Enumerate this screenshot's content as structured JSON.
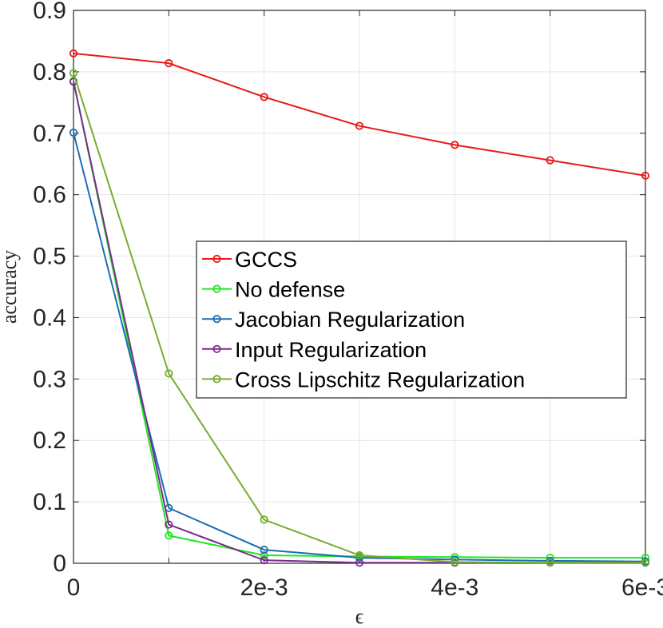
{
  "chart_data": {
    "type": "line",
    "title": "",
    "xlabel": "ϵ",
    "ylabel": "accuracy",
    "xlim": [
      0,
      0.006
    ],
    "ylim": [
      0,
      0.9
    ],
    "grid": true,
    "legend_position": "center-right",
    "x": [
      0,
      0.001,
      0.002,
      0.003,
      0.004,
      0.005,
      0.006
    ],
    "xticks": [
      {
        "value": 0,
        "label": "0"
      },
      {
        "value": 0.002,
        "label": "2e-3"
      },
      {
        "value": 0.004,
        "label": "4e-3"
      },
      {
        "value": 0.006,
        "label": "6e-3"
      }
    ],
    "yticks": [
      {
        "value": 0,
        "label": "0"
      },
      {
        "value": 0.1,
        "label": "0.1"
      },
      {
        "value": 0.2,
        "label": "0.2"
      },
      {
        "value": 0.3,
        "label": "0.3"
      },
      {
        "value": 0.4,
        "label": "0.4"
      },
      {
        "value": 0.5,
        "label": "0.5"
      },
      {
        "value": 0.6,
        "label": "0.6"
      },
      {
        "value": 0.7,
        "label": "0.7"
      },
      {
        "value": 0.8,
        "label": "0.8"
      },
      {
        "value": 0.9,
        "label": "0.9"
      }
    ],
    "series": [
      {
        "name": "GCCS",
        "color": "#e8191b",
        "values": [
          0.83,
          0.814,
          0.759,
          0.712,
          0.681,
          0.656,
          0.631
        ]
      },
      {
        "name": "No defense",
        "color": "#1ee81e",
        "values": [
          0.785,
          0.045,
          0.013,
          0.011,
          0.01,
          0.009,
          0.009
        ]
      },
      {
        "name": "Jacobian Regularization",
        "color": "#1b6eb4",
        "values": [
          0.701,
          0.09,
          0.022,
          0.009,
          0.006,
          0.004,
          0.003
        ]
      },
      {
        "name": "Input Regularization",
        "color": "#7b2d8e",
        "values": [
          0.784,
          0.063,
          0.005,
          0.001,
          0.001,
          0.001,
          0.001
        ]
      },
      {
        "name": "Cross Lipschitz Regularization",
        "color": "#76ad2f",
        "values": [
          0.798,
          0.309,
          0.071,
          0.013,
          0.002,
          0.001,
          0.001
        ]
      }
    ]
  }
}
